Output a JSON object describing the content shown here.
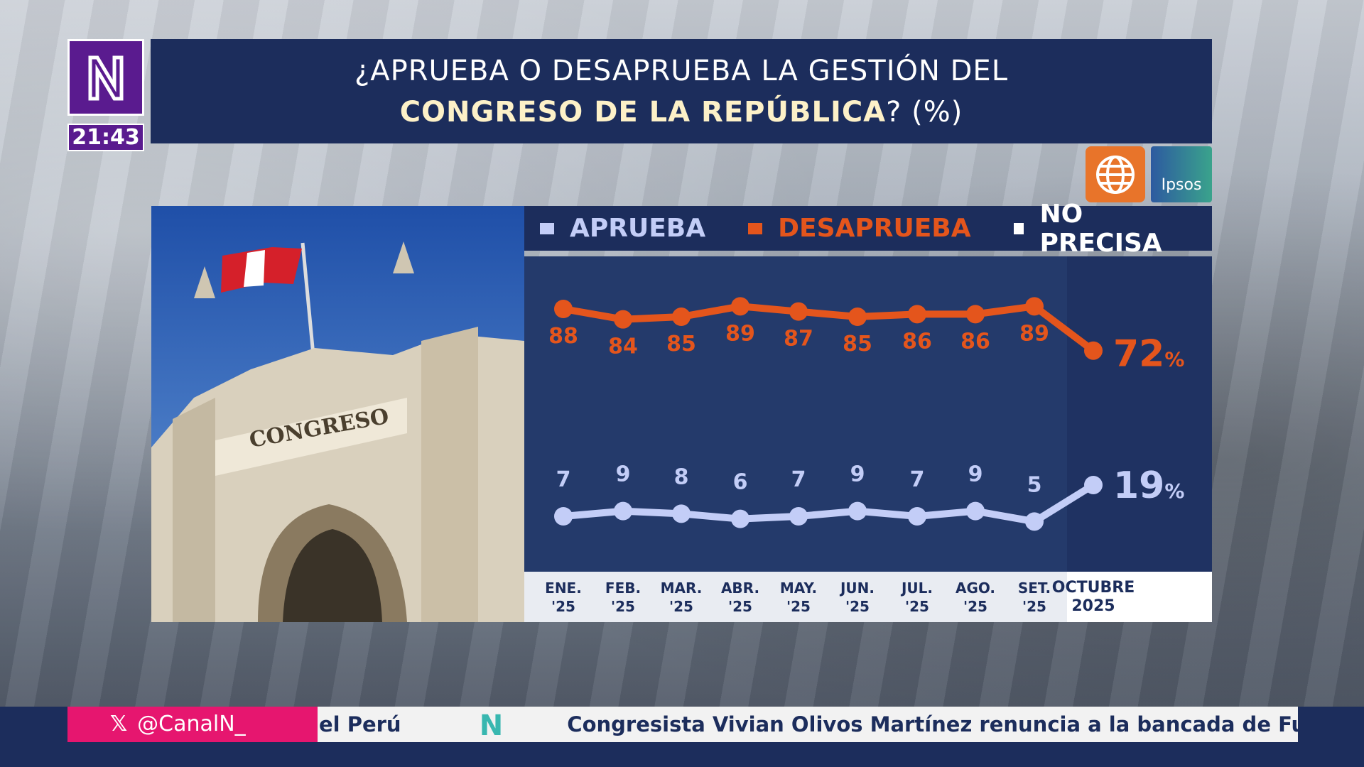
{
  "channel": {
    "logo_text": "N",
    "time": "21:43",
    "handle": "@CanalN_",
    "x_icon": "x-logo-icon"
  },
  "title": {
    "line1": "¿APRUEBA O DESAPRUEBA LA GESTIÓN DEL",
    "line2_bold": "CONGRESO DE LA REPÚBLICA",
    "line2_rest": "? (%)"
  },
  "pollsters": {
    "america": "america-tv-globe-logo",
    "ipsos": "Ipsos"
  },
  "photo": {
    "inscription": "CONGRESO"
  },
  "ticker": {
    "left_fragment": "el Perú",
    "headline": "Congresista Vivian Olivos Martínez renuncia a la bancada de Fuer"
  },
  "colors": {
    "aprueba": "#c3cdf7",
    "desaprueba": "#e4551c",
    "no_precisa": "#ffffff",
    "navy": "#1c2d5c"
  },
  "chart_data": {
    "type": "line",
    "categories": [
      "ENE. '25",
      "FEB. '25",
      "MAR. '25",
      "ABR. '25",
      "MAY. '25",
      "JUN. '25",
      "JUL. '25",
      "AGO. '25",
      "SET. '25",
      "OCTUBRE 2025"
    ],
    "category_lines": [
      [
        "ENE.",
        "'25"
      ],
      [
        "FEB.",
        "'25"
      ],
      [
        "MAR.",
        "'25"
      ],
      [
        "ABR.",
        "'25"
      ],
      [
        "MAY.",
        "'25"
      ],
      [
        "JUN.",
        "'25"
      ],
      [
        "JUL.",
        "'25"
      ],
      [
        "AGO.",
        "'25"
      ],
      [
        "SET.",
        "'25"
      ],
      [
        "OCTUBRE",
        "2025"
      ]
    ],
    "legend": [
      "APRUEBA",
      "DESAPRUEBA",
      "NO PRECISA"
    ],
    "legend_position": "top",
    "series": [
      {
        "name": "APRUEBA",
        "values": [
          7,
          9,
          8,
          6,
          7,
          9,
          7,
          9,
          5,
          19
        ]
      },
      {
        "name": "DESAPRUEBA",
        "values": [
          88,
          84,
          85,
          89,
          87,
          85,
          86,
          86,
          89,
          72
        ]
      }
    ],
    "last_suffix": "%",
    "grid": false
  }
}
